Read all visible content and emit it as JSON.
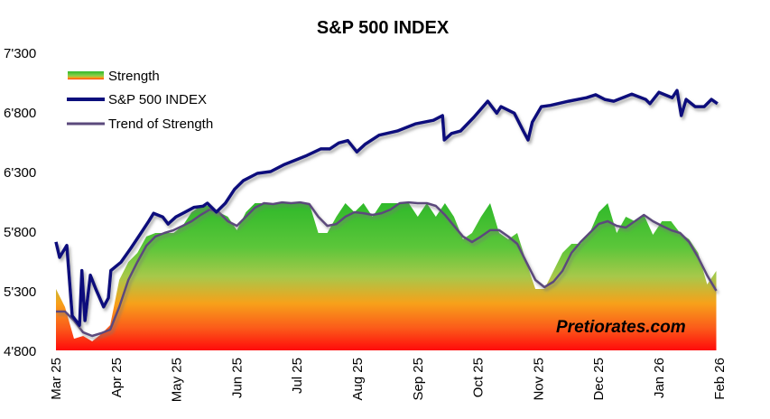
{
  "chart_data": {
    "type": "line",
    "title": "S&P 500 INDEX",
    "xlabel": "",
    "ylabel": "",
    "ylim": [
      4800,
      7300
    ],
    "y_ticks": [
      "7'300",
      "6'800",
      "6'300",
      "5'800",
      "5'300",
      "4'800"
    ],
    "y_tick_values": [
      7300,
      6800,
      6300,
      5800,
      5300,
      4800
    ],
    "x_unit": "months since Mar 25",
    "xlim": [
      0,
      11
    ],
    "x_ticks": [
      "Mar 25",
      "Apr 25",
      "May 25",
      "Jun 25",
      "Jul 25",
      "Aug 25",
      "Sep 25",
      "Oct 25",
      "Nov 25",
      "Dec 25",
      "Jan 26",
      "Feb 26"
    ],
    "legend": [
      "Strength",
      "S&P 500 INDEX",
      "Trend of Strength"
    ],
    "legend_position": "top-left",
    "grid": false,
    "watermark": "Pretiorates.com",
    "colors": {
      "sp500": "#0b0f7c",
      "trend": "#5b4a7c",
      "green": "#2fb92a",
      "orange": "#f7a11a",
      "red": "#ff0a0a"
    },
    "series": [
      {
        "name": "S&P 500 INDEX",
        "points": [
          [
            0,
            5710
          ],
          [
            0.06,
            5580
          ],
          [
            0.18,
            5680
          ],
          [
            0.27,
            5090
          ],
          [
            0.39,
            5010
          ],
          [
            0.43,
            5470
          ],
          [
            0.48,
            5050
          ],
          [
            0.57,
            5430
          ],
          [
            0.66,
            5315
          ],
          [
            0.79,
            5165
          ],
          [
            0.87,
            5240
          ],
          [
            0.91,
            5470
          ],
          [
            1.08,
            5540
          ],
          [
            1.24,
            5655
          ],
          [
            1.39,
            5770
          ],
          [
            1.54,
            5885
          ],
          [
            1.62,
            5950
          ],
          [
            1.77,
            5920
          ],
          [
            1.86,
            5860
          ],
          [
            1.99,
            5920
          ],
          [
            2.14,
            5960
          ],
          [
            2.29,
            6000
          ],
          [
            2.44,
            6010
          ],
          [
            2.51,
            6035
          ],
          [
            2.66,
            5960
          ],
          [
            2.81,
            6035
          ],
          [
            2.96,
            6150
          ],
          [
            3.11,
            6225
          ],
          [
            3.34,
            6285
          ],
          [
            3.56,
            6300
          ],
          [
            3.79,
            6360
          ],
          [
            3.94,
            6390
          ],
          [
            4.16,
            6435
          ],
          [
            4.39,
            6490
          ],
          [
            4.54,
            6490
          ],
          [
            4.69,
            6540
          ],
          [
            4.84,
            6560
          ],
          [
            4.99,
            6465
          ],
          [
            5.13,
            6530
          ],
          [
            5.36,
            6605
          ],
          [
            5.66,
            6640
          ],
          [
            5.96,
            6700
          ],
          [
            6.26,
            6730
          ],
          [
            6.41,
            6770
          ],
          [
            6.44,
            6565
          ],
          [
            6.56,
            6620
          ],
          [
            6.71,
            6640
          ],
          [
            6.93,
            6755
          ],
          [
            7.16,
            6890
          ],
          [
            7.31,
            6790
          ],
          [
            7.38,
            6845
          ],
          [
            7.6,
            6790
          ],
          [
            7.75,
            6640
          ],
          [
            7.83,
            6565
          ],
          [
            7.9,
            6715
          ],
          [
            8.05,
            6845
          ],
          [
            8.2,
            6855
          ],
          [
            8.5,
            6890
          ],
          [
            8.8,
            6920
          ],
          [
            8.95,
            6945
          ],
          [
            9.1,
            6905
          ],
          [
            9.25,
            6890
          ],
          [
            9.55,
            6950
          ],
          [
            9.78,
            6905
          ],
          [
            9.85,
            6870
          ],
          [
            10.0,
            6965
          ],
          [
            10.22,
            6920
          ],
          [
            10.3,
            6980
          ],
          [
            10.37,
            6770
          ],
          [
            10.45,
            6905
          ],
          [
            10.6,
            6845
          ],
          [
            10.75,
            6845
          ],
          [
            10.87,
            6905
          ],
          [
            10.97,
            6870
          ]
        ]
      },
      {
        "name": "Trend of Strength",
        "x_start": 0,
        "x_step": 0.15,
        "values": [
          5126,
          5126,
          5050,
          4951,
          4921,
          4944,
          4974,
          5164,
          5391,
          5542,
          5679,
          5755,
          5785,
          5808,
          5845,
          5883,
          5936,
          5982,
          5959,
          5883,
          5845,
          5921,
          5997,
          6035,
          6027,
          6042,
          6035,
          6042,
          6027,
          5921,
          5845,
          5860,
          5921,
          5959,
          5951,
          5936,
          5951,
          5982,
          6035,
          6042,
          6035,
          6035,
          6012,
          5936,
          5845,
          5755,
          5709,
          5755,
          5808,
          5808,
          5755,
          5694,
          5542,
          5391,
          5330,
          5376,
          5467,
          5618,
          5709,
          5785,
          5860,
          5883,
          5845,
          5830,
          5883,
          5936,
          5883,
          5845,
          5808,
          5785,
          5709,
          5580,
          5429,
          5300
        ]
      },
      {
        "name": "Strength",
        "x_start": 0,
        "x_step": 0.15,
        "values": [
          5315,
          5164,
          4898,
          4921,
          4876,
          4936,
          5012,
          5391,
          5542,
          5618,
          5755,
          5785,
          5785,
          5785,
          5845,
          5959,
          6012,
          6012,
          5959,
          5921,
          5808,
          5959,
          6035,
          6035,
          6035,
          6035,
          6035,
          6035,
          6035,
          5785,
          5785,
          5921,
          6035,
          5959,
          6035,
          5921,
          6035,
          6035,
          6035,
          6035,
          5921,
          6035,
          5921,
          6035,
          5921,
          5732,
          5785,
          5921,
          6035,
          5785,
          5732,
          5785,
          5542,
          5315,
          5315,
          5467,
          5618,
          5694,
          5694,
          5785,
          5959,
          6035,
          5785,
          5921,
          5883,
          5936,
          5770,
          5883,
          5883,
          5785,
          5732,
          5618,
          5353,
          5467
        ]
      }
    ]
  }
}
